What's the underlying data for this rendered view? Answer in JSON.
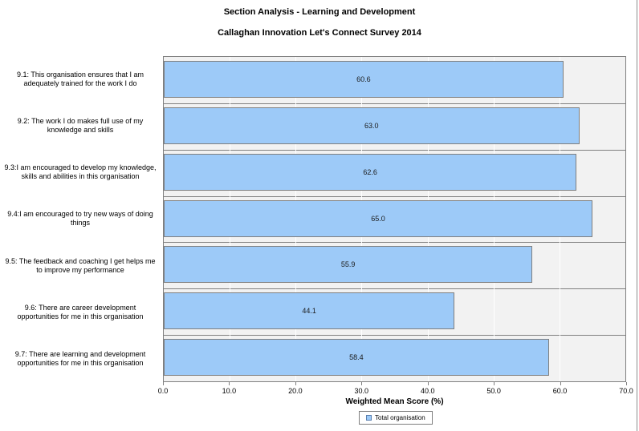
{
  "title": "Section Analysis - Learning and Development",
  "subtitle": "Callaghan Innovation Let's Connect Survey 2014",
  "chart_data": {
    "type": "bar",
    "orientation": "horizontal",
    "categories": [
      "9.1: This organisation ensures that I am adequately trained for the work I do",
      "9.2: The work I do makes full use of my knowledge and skills",
      "9.3:I am encouraged to develop my knowledge, skills and abilities in this organisation",
      "9.4:I am encouraged to try new ways of doing things",
      "9.5: The feedback and coaching I get helps me to improve my performance",
      "9.6: There are career development opportunities for me in this organisation",
      "9.7: There are learning and development opportunities for me in this organisation"
    ],
    "values": [
      60.6,
      63.0,
      62.6,
      65.0,
      55.9,
      44.1,
      58.4
    ],
    "value_labels": [
      "60.6",
      "63.0",
      "62.6",
      "65.0",
      "55.9",
      "44.1",
      "58.4"
    ],
    "xlabel": "Weighted Mean Score (%)",
    "xlim": [
      0,
      70
    ],
    "xtick_step": 10,
    "xticks": [
      "0.0",
      "10.0",
      "20.0",
      "30.0",
      "40.0",
      "50.0",
      "60.0",
      "70.0"
    ],
    "grid": true,
    "legend_position": "bottom",
    "series_name": "Total organisation"
  },
  "legend": {
    "label": "Total organisation"
  },
  "colors": {
    "bar_fill": "#9DCAF8",
    "bar_border": "#7F7F7F",
    "plot_bg": "#F2F2F2",
    "plot_border": "#808080",
    "gridline": "#FFFFFF",
    "swatch_fill": "#9DCAF8"
  }
}
